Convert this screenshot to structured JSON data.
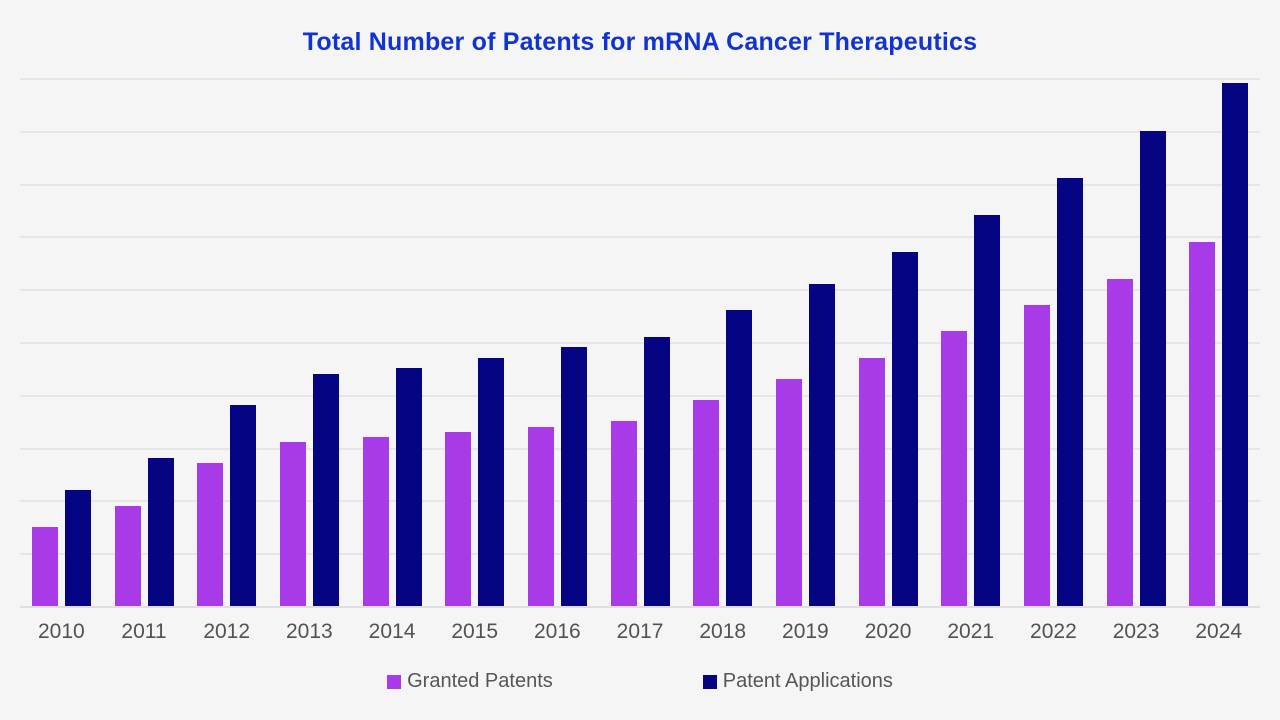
{
  "chart_data": {
    "type": "bar",
    "title": "Total Number of Patents for mRNA Cancer Therapeutics",
    "title_color": "#1133d1",
    "categories": [
      "2010",
      "2011",
      "2012",
      "2013",
      "2014",
      "2015",
      "2016",
      "2017",
      "2018",
      "2019",
      "2020",
      "2021",
      "2022",
      "2023",
      "2024"
    ],
    "series": [
      {
        "name": "Granted Patents",
        "color": "#a83ae8",
        "values": [
          75,
          95,
          135,
          155,
          160,
          165,
          170,
          175,
          195,
          215,
          235,
          260,
          285,
          310,
          345
        ]
      },
      {
        "name": "Patent Applications",
        "color": "#050584",
        "values": [
          110,
          140,
          190,
          220,
          225,
          235,
          245,
          255,
          280,
          305,
          335,
          370,
          405,
          450,
          495
        ]
      }
    ],
    "xlabel": "",
    "ylabel": "",
    "ylim": [
      0,
      500
    ],
    "y_axis_tick_labels": "none",
    "gridline_interval": 50,
    "grid": "on",
    "gridline_color": "#e6e6e9",
    "axis_label_color": "#525252",
    "legend_position": "bottom",
    "legend_text_color": "#565656",
    "background_color": "#f5f5f6"
  }
}
